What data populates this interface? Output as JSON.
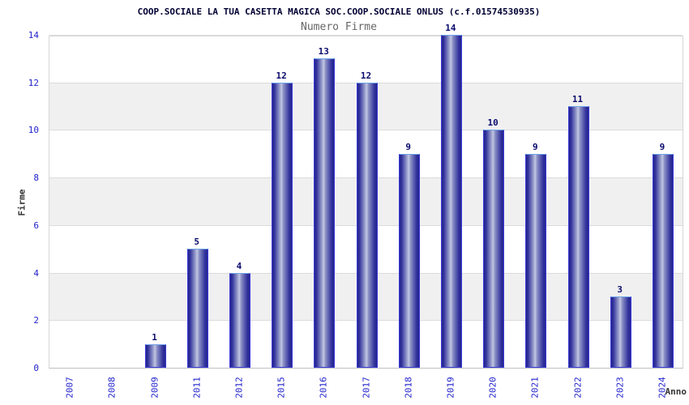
{
  "chart_data": {
    "type": "bar",
    "title": "COOP.SOCIALE LA TUA CASETTA MAGICA SOC.COOP.SOCIALE ONLUS (c.f.01574530935)",
    "subtitle": "Numero Firme",
    "xlabel": "Anno",
    "ylabel": "Firme",
    "categories": [
      "2007",
      "2008",
      "2009",
      "2011",
      "2012",
      "2015",
      "2016",
      "2017",
      "2018",
      "2019",
      "2020",
      "2021",
      "2022",
      "2023",
      "2024"
    ],
    "values": [
      0,
      0,
      1,
      5,
      4,
      12,
      13,
      12,
      9,
      14,
      10,
      9,
      11,
      3,
      9
    ],
    "ylim": [
      0,
      14
    ],
    "yticks": [
      0,
      2,
      4,
      6,
      8,
      10,
      12,
      14
    ],
    "bar_value_labels": true,
    "bars_shown_only_for_nonzero_values": true,
    "grid": "horizontal gridlines with alternating gray bands",
    "legend": "none",
    "x_tick_rotation_degrees": 90,
    "colors": {
      "bar_dark": "#26268c",
      "bar_highlight": "#c2c7e3",
      "bar_border": "#3a3ad8",
      "bar_border_top": "#6fa4e8",
      "tick_labels": "#2323cd",
      "value_labels": "#0a0a6e",
      "title": "#000033",
      "subtitle": "#666666",
      "axis_titles": "#333333",
      "band": "#f0f0f0",
      "gridline": "#dcdcdc"
    }
  }
}
